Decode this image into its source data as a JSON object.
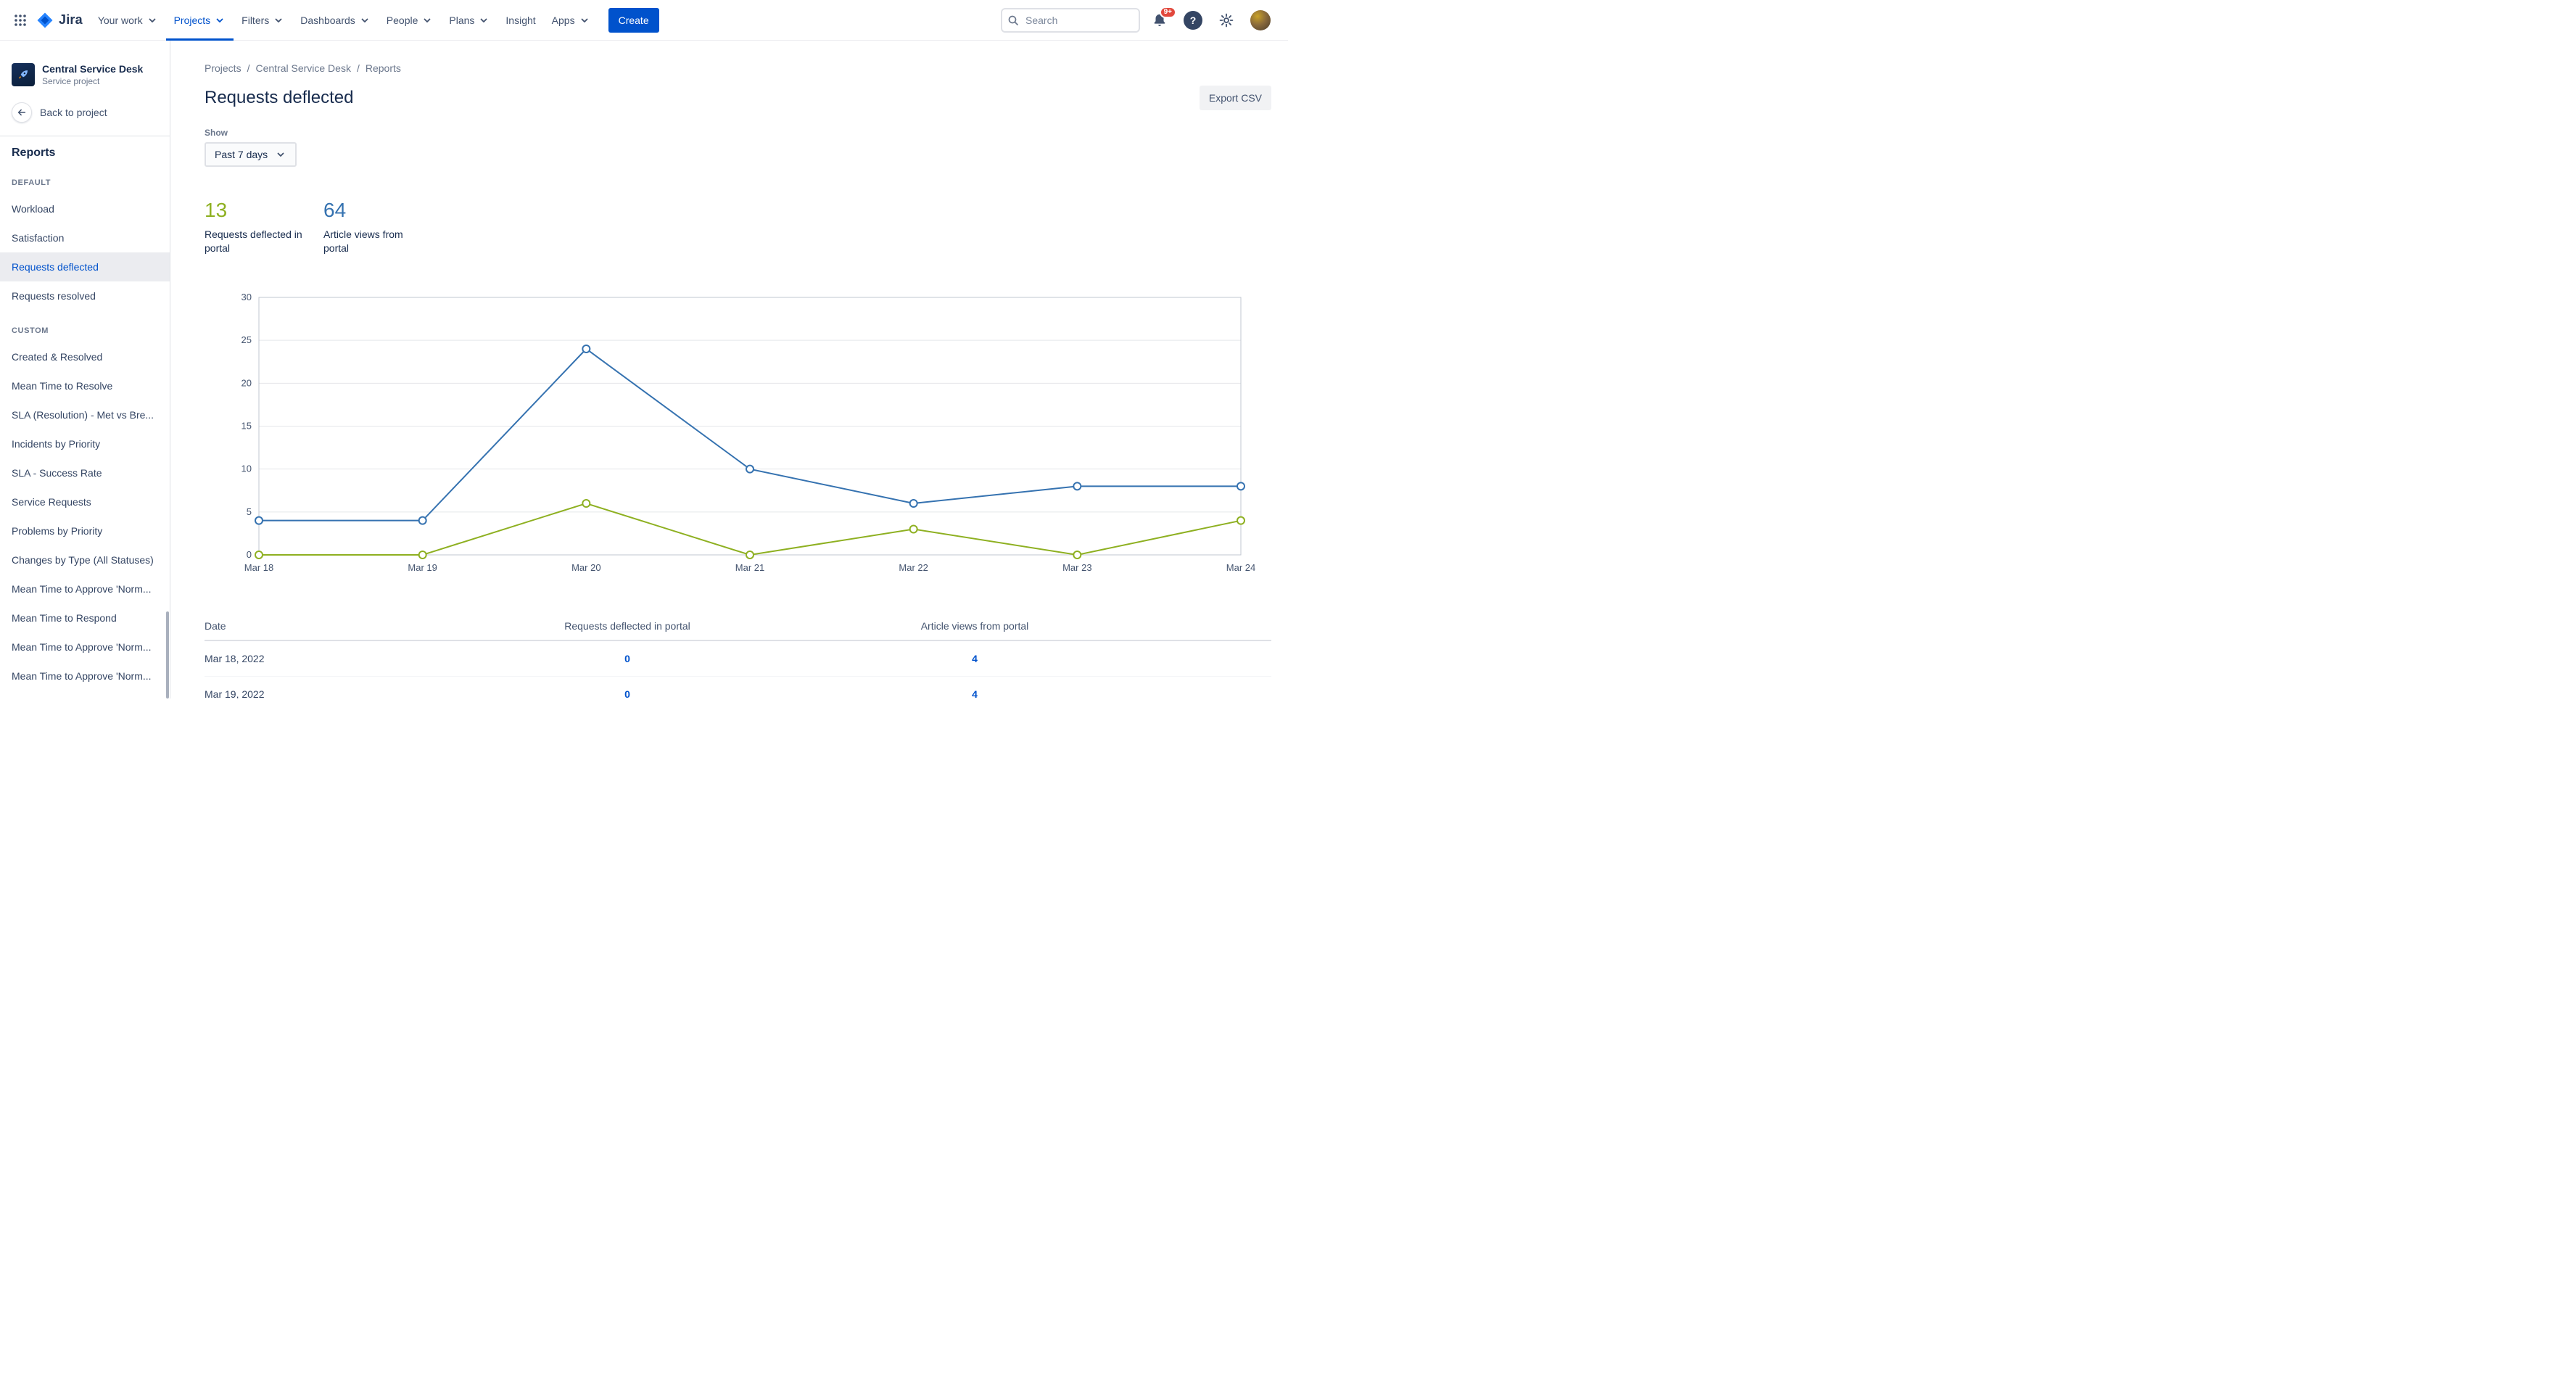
{
  "topnav": {
    "logo_label": "Jira",
    "items": [
      {
        "label": "Your work",
        "dropdown": true,
        "active": false
      },
      {
        "label": "Projects",
        "dropdown": true,
        "active": true
      },
      {
        "label": "Filters",
        "dropdown": true,
        "active": false
      },
      {
        "label": "Dashboards",
        "dropdown": true,
        "active": false
      },
      {
        "label": "People",
        "dropdown": true,
        "active": false
      },
      {
        "label": "Plans",
        "dropdown": true,
        "active": false
      },
      {
        "label": "Insight",
        "dropdown": false,
        "active": false
      },
      {
        "label": "Apps",
        "dropdown": true,
        "active": false
      }
    ],
    "create_label": "Create",
    "search_placeholder": "Search",
    "notification_badge": "9+"
  },
  "sidebar": {
    "project_name": "Central Service Desk",
    "project_type": "Service project",
    "back_label": "Back to project",
    "title": "Reports",
    "groups": [
      {
        "title": "DEFAULT",
        "selected": "Requests deflected",
        "items": [
          "Workload",
          "Satisfaction",
          "Requests deflected",
          "Requests resolved"
        ]
      },
      {
        "title": "CUSTOM",
        "selected": "",
        "items": [
          "Created & Resolved",
          "Mean Time to Resolve",
          "SLA (Resolution) - Met vs Bre...",
          "Incidents by Priority",
          "SLA - Success Rate",
          "Service Requests",
          "Problems by Priority",
          "Changes by Type (All Statuses)",
          "Mean Time to Approve 'Norm...",
          "Mean Time to Respond",
          "Mean Time to Approve 'Norm...",
          "Mean Time to Approve 'Norm..."
        ]
      }
    ]
  },
  "main": {
    "breadcrumbs": [
      "Projects",
      "Central Service Desk",
      "Reports"
    ],
    "title": "Requests deflected",
    "export_label": "Export CSV",
    "show_label": "Show",
    "period_value": "Past 7 days",
    "stats": [
      {
        "value": "13",
        "label": "Requests deflected in portal",
        "color": "#8EB021"
      },
      {
        "value": "64",
        "label": "Article views from portal",
        "color": "#3572B0"
      }
    ]
  },
  "chart_data": {
    "type": "line",
    "title": "Requests deflected",
    "x": [
      "Mar 18",
      "Mar 19",
      "Mar 20",
      "Mar 21",
      "Mar 22",
      "Mar 23",
      "Mar 24"
    ],
    "series": [
      {
        "name": "Article views from portal",
        "color": "#3572B0",
        "values": [
          4,
          4,
          24,
          10,
          6,
          8,
          8
        ]
      },
      {
        "name": "Requests deflected in portal",
        "color": "#8EB021",
        "values": [
          0,
          0,
          6,
          0,
          3,
          0,
          4
        ]
      }
    ],
    "ylim": [
      0,
      30
    ],
    "yticks": [
      0,
      5,
      10,
      15,
      20,
      25,
      30
    ],
    "grid": "horizontal",
    "legend": "none"
  },
  "table": {
    "columns": [
      "Date",
      "Requests deflected in portal",
      "Article views from portal"
    ],
    "rows": [
      [
        "Mar 18, 2022",
        "0",
        "4"
      ],
      [
        "Mar 19, 2022",
        "0",
        "4"
      ]
    ]
  }
}
